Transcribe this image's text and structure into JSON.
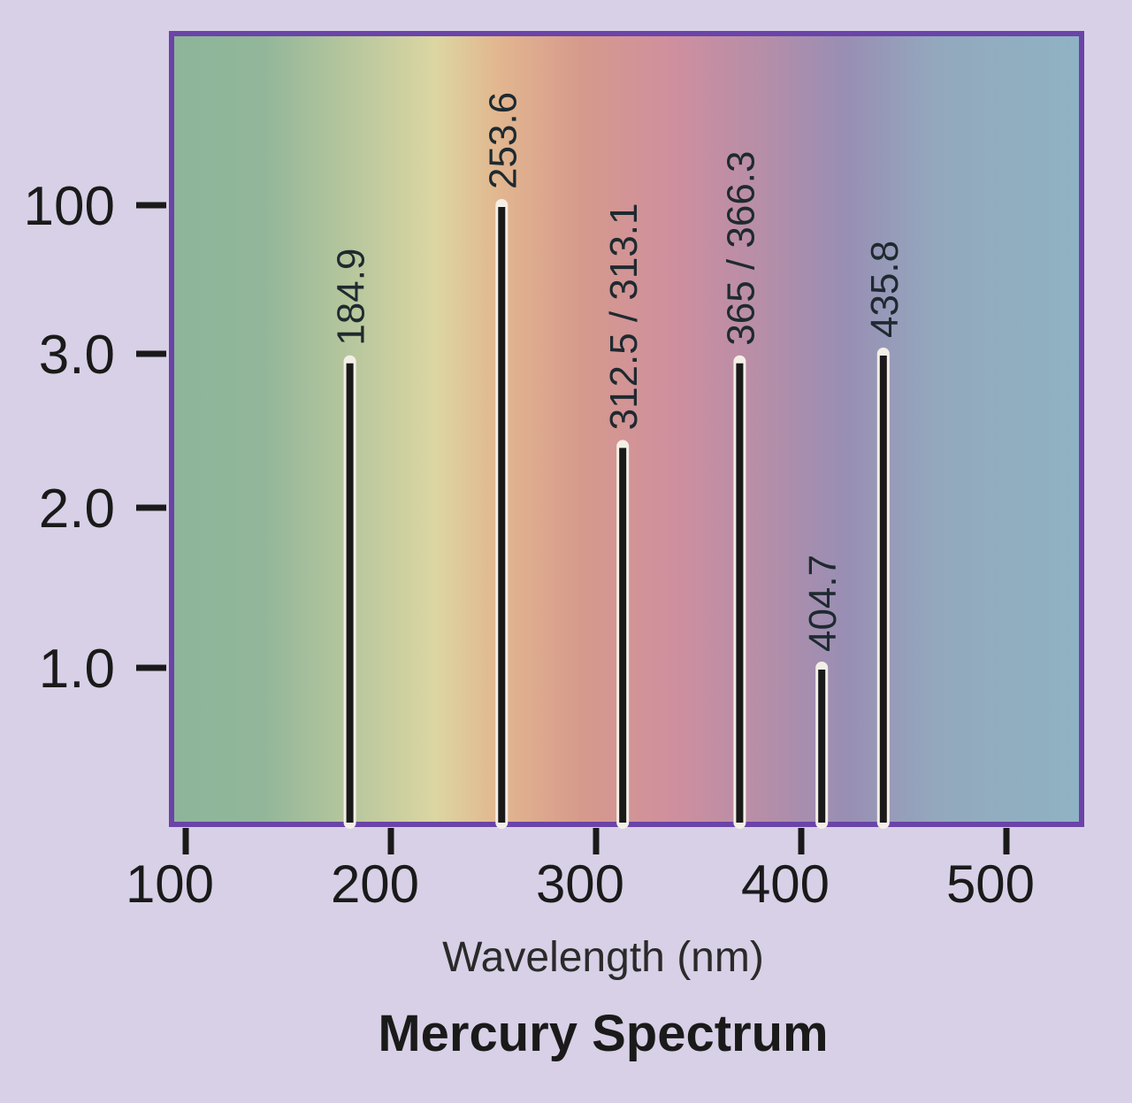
{
  "chart_data": {
    "type": "bar",
    "title": "Mercury Spectrum",
    "xlabel": "Wavelength (nm)",
    "ylabel": "",
    "x_ticks": [
      "100",
      "200",
      "300",
      "400",
      "500"
    ],
    "x_tick_values": [
      100,
      200,
      300,
      400,
      500
    ],
    "xlim": [
      95,
      535
    ],
    "y_ticks": [
      "1.0",
      "2.0",
      "3.0",
      "100"
    ],
    "y_scale": "relative intensity, non-linear (1.0, 2.0, 3.0, then break to 100)",
    "grid": false,
    "legend": "none",
    "lines": [
      {
        "label": "184.9",
        "x": 180,
        "y": 2.95
      },
      {
        "label": "253.6",
        "x": 254,
        "y": 100
      },
      {
        "label": "312.5 / 313.1",
        "x": 313,
        "y": 2.4
      },
      {
        "label": "365 / 366.3",
        "x": 370,
        "y": 2.95
      },
      {
        "label": "404.7",
        "x": 410,
        "y": 1.0
      },
      {
        "label": "435.8",
        "x": 440,
        "y": 3.0
      }
    ],
    "colors": {
      "frame": "#6a44a8",
      "line": "#1a1a1a",
      "page_background": "#d8d0e6"
    }
  }
}
